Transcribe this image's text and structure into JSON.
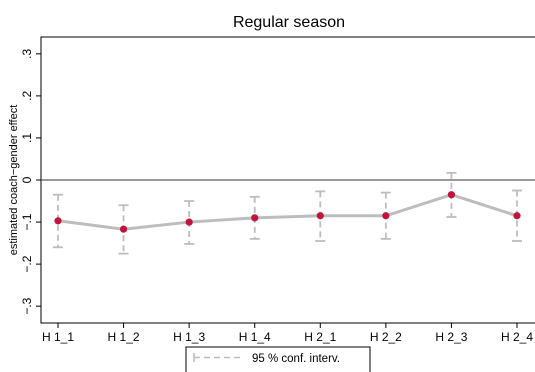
{
  "chart_data": {
    "type": "line",
    "title": "Regular season",
    "xlabel": "",
    "ylabel": "estimated coach−gender effect",
    "categories": [
      "H 1_1",
      "H 1_2",
      "H 1_3",
      "H 1_4",
      "H 2_1",
      "H 2_2",
      "H 2_3",
      "H 2_4"
    ],
    "series": [
      {
        "values": [
          -0.097,
          -0.117,
          -0.1,
          -0.09,
          -0.085,
          -0.085,
          -0.035,
          -0.085
        ],
        "ci_lower": [
          -0.16,
          -0.175,
          -0.152,
          -0.14,
          -0.145,
          -0.14,
          -0.088,
          -0.145
        ],
        "ci_upper": [
          -0.035,
          -0.06,
          -0.05,
          -0.04,
          -0.027,
          -0.03,
          0.017,
          -0.025
        ]
      }
    ],
    "yticks": [
      -0.3,
      -0.2,
      -0.1,
      0,
      0.1,
      0.2,
      0.3
    ],
    "ytick_labels": [
      "−.3",
      "−.2",
      "−.1",
      "0",
      ".1",
      ".2",
      ".3"
    ],
    "ylim": [
      -0.34,
      0.34
    ],
    "reference_line": 0,
    "legend": {
      "label": "95 % conf. interv.",
      "placement": "bottom-center"
    },
    "colors": {
      "point": "#c0143c",
      "line": "#bdbdbd",
      "ci": "#bdbdbd",
      "reference": "#5a5a5a"
    },
    "grid": false
  }
}
